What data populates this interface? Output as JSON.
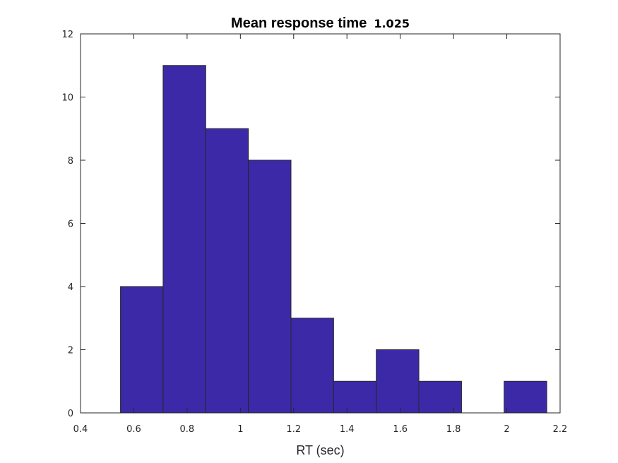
{
  "chart_data": {
    "type": "bar",
    "title": "Mean response time",
    "title_value": "1.025",
    "xlabel": "RT (sec)",
    "ylabel": "",
    "bin_edges": [
      0.55,
      0.71,
      0.87,
      1.03,
      1.19,
      1.35,
      1.51,
      1.67,
      1.83,
      1.99,
      2.15
    ],
    "values": [
      4,
      11,
      9,
      8,
      3,
      1,
      2,
      1,
      0,
      1
    ],
    "xlim": [
      0.4,
      2.2
    ],
    "ylim": [
      0,
      12
    ],
    "xticks": [
      0.4,
      0.6,
      0.8,
      1,
      1.2,
      1.4,
      1.6,
      1.8,
      2,
      2.2
    ],
    "xtick_labels": [
      "0.4",
      "0.6",
      "0.8",
      "1",
      "1.2",
      "1.4",
      "1.6",
      "1.8",
      "2",
      "2.2"
    ],
    "yticks": [
      0,
      2,
      4,
      6,
      8,
      10,
      12
    ],
    "ytick_labels": [
      "0",
      "2",
      "4",
      "6",
      "8",
      "10",
      "12"
    ],
    "bar_color": "#3c29a8",
    "edge_color": "#262626",
    "grid": false,
    "legend": "none"
  }
}
